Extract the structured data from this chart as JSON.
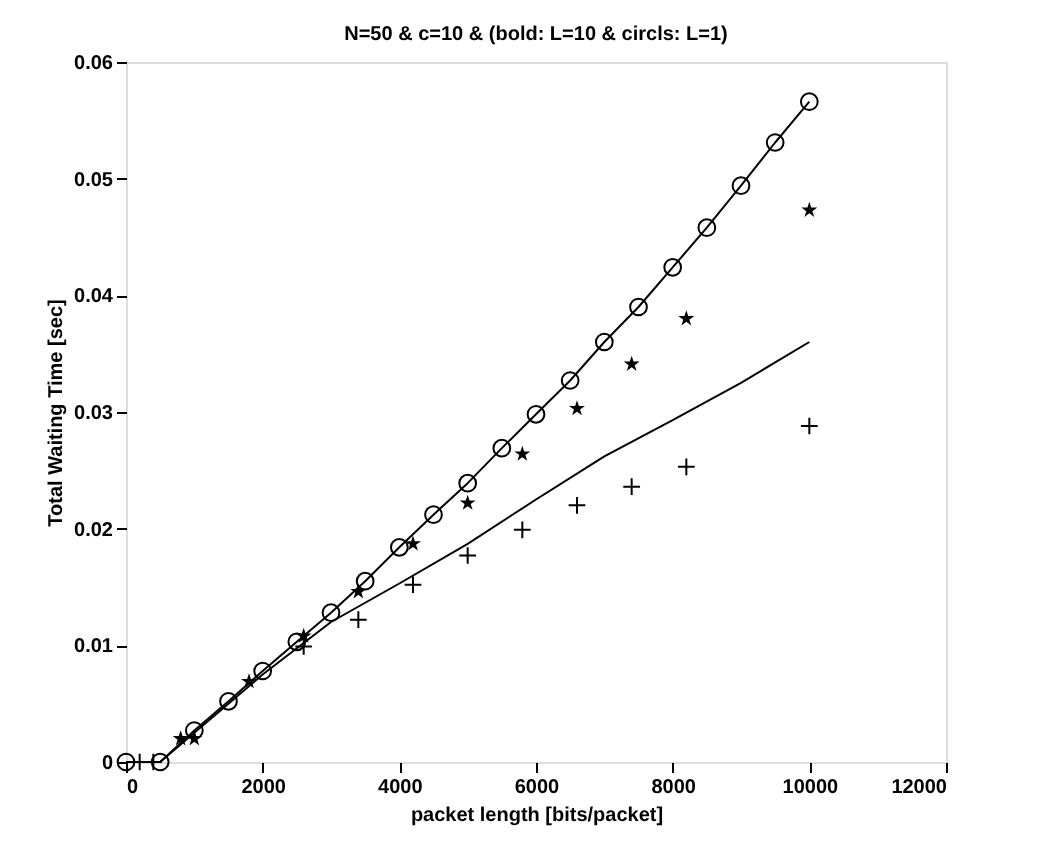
{
  "chart_data": {
    "type": "scatter",
    "title": "N=50 & c=10 & (bold: L=10 & circls: L=1)",
    "xlabel": "packet length   [bits/packet]",
    "ylabel": "Total Waiting Time  [sec]",
    "xlim": [
      0,
      12000
    ],
    "xticks": [
      0,
      2000,
      4000,
      6000,
      8000,
      10000,
      12000
    ],
    "ylim": [
      0,
      0.06
    ],
    "yticks": [
      0,
      0.01,
      0.02,
      0.03,
      0.04,
      0.05,
      0.06
    ],
    "grid": false,
    "series": [
      {
        "type": "line",
        "marker": "circle",
        "color": "#000000",
        "x": [
          0,
          500,
          1000,
          1500,
          2000,
          2500,
          3000,
          3500,
          4000,
          4500,
          5000,
          5500,
          6000,
          6500,
          7000,
          7500,
          8000,
          8500,
          9000,
          9500,
          10000
        ],
        "values": [
          0,
          0,
          0.0027,
          0.0052,
          0.0078,
          0.0103,
          0.0128,
          0.0155,
          0.0184,
          0.0212,
          0.0239,
          0.0269,
          0.0298,
          0.0327,
          0.036,
          0.039,
          0.0424,
          0.0458,
          0.0494,
          0.0531,
          0.0566
        ]
      },
      {
        "type": "line",
        "marker": "none",
        "color": "#000000",
        "x": [
          500,
          1000,
          2000,
          3000,
          4000,
          5000,
          6000,
          7000,
          8000,
          9000,
          10000
        ],
        "values": [
          0,
          0.0025,
          0.0075,
          0.012,
          0.0153,
          0.0187,
          0.0225,
          0.0262,
          0.0293,
          0.0325,
          0.036
        ]
      },
      {
        "marker": "star",
        "color": "#000000",
        "x": [
          800,
          1000,
          1800,
          2600,
          3400,
          4200,
          5000,
          5800,
          6600,
          7400,
          8200,
          10000
        ],
        "values": [
          0.002,
          0.002,
          0.0069,
          0.0108,
          0.0146,
          0.0187,
          0.0222,
          0.0264,
          0.0303,
          0.0341,
          0.038,
          0.0473
        ]
      },
      {
        "marker": "cross",
        "color": "#000000",
        "x": [
          200,
          400,
          2600,
          3400,
          4200,
          5000,
          5800,
          6600,
          7400,
          8200,
          10000
        ],
        "values": [
          0,
          0,
          0.0099,
          0.0122,
          0.0152,
          0.0177,
          0.0199,
          0.022,
          0.0236,
          0.0253,
          0.0288
        ]
      }
    ]
  }
}
